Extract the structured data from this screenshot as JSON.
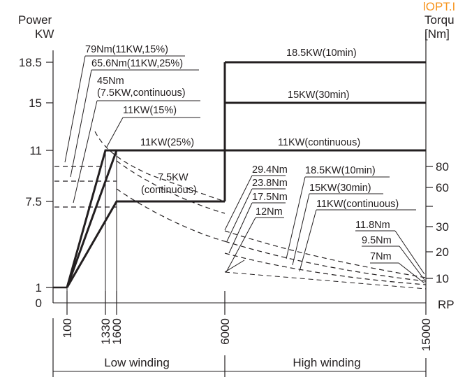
{
  "chart_data": {
    "type": "line",
    "corner_label": "lOPT.I",
    "left_axis": {
      "label_lines": [
        "Power",
        "KW"
      ],
      "ticks": [
        {
          "label": "18.5",
          "value": 18.5
        },
        {
          "label": "15",
          "value": 15
        },
        {
          "label": "11",
          "value": 11
        },
        {
          "label": "7.5",
          "value": 7.5
        },
        {
          "label": "1",
          "value": 1
        },
        {
          "label": "0",
          "value": 0
        }
      ]
    },
    "right_axis": {
      "label_lines": [
        "Torqu",
        "[Nm]"
      ],
      "ticks": [
        {
          "label": "80",
          "value": 80
        },
        {
          "label": "60",
          "value": 60
        },
        {
          "label": "30",
          "value": 30
        },
        {
          "label": "20",
          "value": 20
        },
        {
          "label": "10",
          "value": 10
        }
      ]
    },
    "x_axis": {
      "label": "RP",
      "ticks": [
        {
          "label": "100",
          "value": 100
        },
        {
          "label": "1330",
          "value": 1330
        },
        {
          "label": "1600",
          "value": 1600
        },
        {
          "label": "6000",
          "value": 6000
        },
        {
          "label": "15000",
          "value": 15000
        }
      ]
    },
    "regions": [
      {
        "label": "Low winding",
        "from": 100,
        "to": 6000
      },
      {
        "label": "High winding",
        "from": 6000,
        "to": 15000
      }
    ],
    "power_series": [
      {
        "name": "11KW(15%)",
        "points": [
          [
            100,
            1
          ],
          [
            1330,
            11
          ],
          [
            6000,
            11
          ]
        ]
      },
      {
        "name": "11KW(25%)",
        "points": [
          [
            100,
            1
          ],
          [
            1600,
            11
          ],
          [
            6000,
            11
          ]
        ]
      },
      {
        "name": "7.5KW (continuous)",
        "points": [
          [
            100,
            1
          ],
          [
            1600,
            7.5
          ],
          [
            6000,
            7.5
          ]
        ]
      },
      {
        "name": "18.5KW(10min)",
        "points": [
          [
            6000,
            18.5
          ],
          [
            15000,
            18.5
          ]
        ]
      },
      {
        "name": "15KW(30min)",
        "points": [
          [
            6000,
            15
          ],
          [
            15000,
            15
          ]
        ]
      },
      {
        "name": "11KW(continuous)",
        "points": [
          [
            6000,
            11
          ],
          [
            15000,
            11
          ]
        ]
      }
    ],
    "torque_series": [
      {
        "name": "79Nm(11KW,15%)",
        "points": [
          [
            100,
            79
          ],
          [
            1330,
            79
          ]
        ]
      },
      {
        "name": "65.6Nm(11KW,25%)",
        "points": [
          [
            100,
            65.6
          ],
          [
            1600,
            65.6
          ]
        ]
      },
      {
        "name": "45Nm (7.5KW,continuous)",
        "points": [
          [
            100,
            45
          ],
          [
            1600,
            45
          ]
        ]
      },
      {
        "name": "29.4Nm",
        "points": [
          [
            6000,
            29.4
          ],
          [
            15000,
            11.8
          ]
        ]
      },
      {
        "name": "23.8Nm",
        "points": [
          [
            6000,
            23.8
          ],
          [
            15000,
            9.5
          ]
        ]
      },
      {
        "name": "17.5Nm",
        "points": [
          [
            6000,
            17.5
          ],
          [
            15000,
            7
          ]
        ]
      }
    ],
    "annotations": [
      {
        "text": "79Nm(11KW,15%)",
        "row": 0
      },
      {
        "text": "65.6Nm(11KW,25%)",
        "row": 1
      },
      {
        "text": "45Nm",
        "row": 2
      },
      {
        "text": "(7.5KW,continuous)",
        "row": 3
      },
      {
        "text": "11KW(15%)",
        "row": 4
      },
      {
        "text": "11KW(25%)",
        "row": 5
      },
      {
        "text": "7.5KW",
        "row": 6
      },
      {
        "text": "(continuous)",
        "row": 7
      },
      {
        "text": "18.5KW(10min)",
        "row": 8
      },
      {
        "text": "15KW(30min)",
        "row": 9
      },
      {
        "text": "11KW(continuous)",
        "row": 10
      },
      {
        "text": "29.4Nm",
        "row": 11
      },
      {
        "text": "23.8Nm",
        "row": 12
      },
      {
        "text": "17.5Nm",
        "row": 13
      },
      {
        "text": "12Nm",
        "row": 14
      },
      {
        "text": "18.5KW(10min)",
        "row": 15
      },
      {
        "text": "15KW(30min)",
        "row": 16
      },
      {
        "text": "11KW(continuous)",
        "row": 17
      },
      {
        "text": "11.8Nm",
        "row": 18
      },
      {
        "text": "9.5Nm",
        "row": 19
      },
      {
        "text": "7Nm",
        "row": 20
      }
    ]
  }
}
